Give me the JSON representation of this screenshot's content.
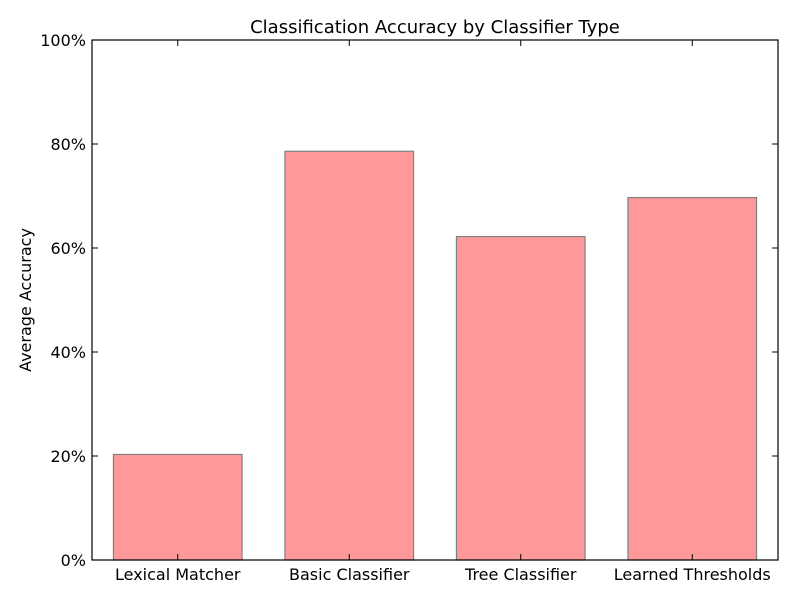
{
  "chart_data": {
    "type": "bar",
    "title": "Classification Accuracy by Classifier Type",
    "xlabel": "",
    "ylabel": "Average Accuracy",
    "categories": [
      "Lexical Matcher",
      "Basic Classifier",
      "Tree Classifier",
      "Learned Thresholds"
    ],
    "values": [
      0.203,
      0.786,
      0.622,
      0.697
    ],
    "ylim": [
      0,
      1.0
    ],
    "yticks": [
      0,
      0.2,
      0.4,
      0.6,
      0.8,
      1.0
    ],
    "ytick_labels": [
      "0%",
      "20%",
      "40%",
      "60%",
      "80%",
      "100%"
    ],
    "grid": false,
    "bar_color": "#ff9999",
    "bar_edge_color": "#808080"
  }
}
